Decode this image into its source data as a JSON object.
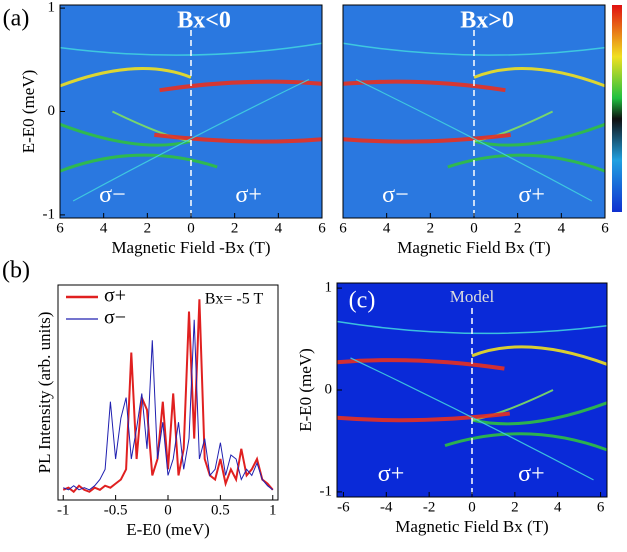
{
  "chart_data": [
    {
      "type": "heatmap",
      "panel_label": "(a)",
      "xlabel": "Magnetic Field  -Bx (T)",
      "ylabel": "E-E0 (meV)",
      "annotations": [
        "Bx<0",
        "σ−",
        "σ+"
      ],
      "xlim": [
        -6,
        6
      ],
      "ylim": [
        -1.03,
        1.03
      ],
      "xticks": [
        {
          "value": -6,
          "label": "6"
        },
        {
          "value": -4,
          "label": "4"
        },
        {
          "value": -2,
          "label": "2"
        },
        0,
        2,
        4,
        6
      ],
      "yticks": [
        -1,
        0,
        1
      ]
    },
    {
      "type": "heatmap",
      "xlabel": "Magnetic Field  Bx (T)",
      "annotations": [
        "Bx>0",
        "σ−",
        "σ+"
      ],
      "xlim": [
        -6,
        6
      ],
      "ylim": [
        -1.03,
        1.03
      ],
      "xticks": [
        {
          "value": -6,
          "label": "6"
        },
        {
          "value": -4,
          "label": "4"
        },
        {
          "value": -2,
          "label": "2"
        },
        0,
        2,
        4,
        6
      ]
    },
    {
      "type": "line",
      "panel_label": "(b)",
      "xlabel": "E-E0 (meV)",
      "ylabel": "PL Intensity (arb. units)",
      "annotations": [
        "Bx= -5 T"
      ],
      "xlim": [
        -1.05,
        1.05
      ],
      "ylim": [
        0,
        1.05
      ],
      "xticks": [
        -1,
        -0.5,
        0,
        0.5,
        1
      ],
      "x": [
        -1,
        -0.95,
        -0.9,
        -0.85,
        -0.8,
        -0.75,
        -0.7,
        -0.65,
        -0.6,
        -0.55,
        -0.5,
        -0.45,
        -0.4,
        -0.35,
        -0.3,
        -0.25,
        -0.2,
        -0.15,
        -0.1,
        -0.05,
        0,
        0.05,
        0.1,
        0.15,
        0.2,
        0.25,
        0.3,
        0.35,
        0.4,
        0.45,
        0.5,
        0.55,
        0.6,
        0.65,
        0.7,
        0.75,
        0.8,
        0.85,
        0.9,
        0.95,
        1
      ],
      "series": [
        {
          "name": "σ+",
          "color": "#e02020",
          "values": [
            0.05,
            0.06,
            0.04,
            0.07,
            0.05,
            0.04,
            0.06,
            0.05,
            0.07,
            0.06,
            0.08,
            0.1,
            0.15,
            0.72,
            0.2,
            0.5,
            0.44,
            0.12,
            0.2,
            0.48,
            0.15,
            0.52,
            0.12,
            0.25,
            0.92,
            0.3,
            0.98,
            0.2,
            0.12,
            0.1,
            0.2,
            0.08,
            0.15,
            0.1,
            0.25,
            0.12,
            0.15,
            0.2,
            0.1,
            0.08,
            0.05
          ]
        },
        {
          "name": "σ−",
          "color": "#2020b0",
          "values": [
            0.06,
            0.05,
            0.07,
            0.05,
            0.06,
            0.05,
            0.07,
            0.1,
            0.15,
            0.48,
            0.2,
            0.4,
            0.5,
            0.2,
            0.35,
            0.52,
            0.25,
            0.78,
            0.2,
            0.38,
            0.12,
            0.2,
            0.38,
            0.15,
            0.3,
            0.88,
            0.2,
            0.3,
            0.12,
            0.15,
            0.28,
            0.12,
            0.22,
            0.2,
            0.1,
            0.15,
            0.12,
            0.18,
            0.1,
            0.07,
            0.05
          ]
        }
      ]
    },
    {
      "type": "heatmap",
      "panel_label": "(c)",
      "xlabel": "Magnetic Field  Bx (T)",
      "ylabel": "E-E0 (meV)",
      "annotations": [
        "Model",
        "σ+",
        "σ+"
      ],
      "xlim": [
        -6.3,
        6.3
      ],
      "ylim": [
        -1.05,
        1.05
      ],
      "xticks": [
        -6,
        -4,
        -2,
        0,
        2,
        4,
        6
      ],
      "yticks": [
        -1,
        0,
        1
      ]
    }
  ]
}
